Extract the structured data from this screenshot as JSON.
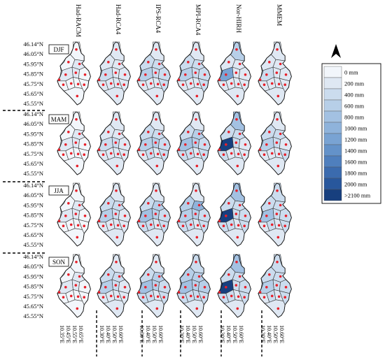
{
  "models": [
    "Had-RACM",
    "Had-RCA4",
    "IPS-RCA4",
    "MPI-RCA4",
    "Nor-HIRH",
    "MMEM"
  ],
  "seasons": [
    "DJF",
    "MAM",
    "JJA",
    "SON"
  ],
  "lat_labels": [
    "46.14°N",
    "46.05°N",
    "45.95°N",
    "45.85°N",
    "45.75°N",
    "45.65°N",
    "45.55°N"
  ],
  "lon_groups": [
    [
      "10.35°E",
      "10.45°E",
      "10.55°E",
      "10.65°E"
    ],
    [
      "10.30°E",
      "10.40°E",
      "10.50°E",
      "10.60°E"
    ],
    [
      "10.30°E",
      "10.40°E",
      "10.50°E",
      "10.60°E"
    ],
    [
      "10.30°E",
      "10.40°E",
      "10.50°E",
      "10.60°E"
    ],
    [
      "10.30°E",
      "10.40°E",
      "10.50°E",
      "10.60°E"
    ],
    [
      "10.30°E",
      "10.40°E",
      "10.50°E",
      "10.60°E"
    ]
  ],
  "legend": {
    "labels": [
      "0 mm",
      "200 mm",
      "400 mm",
      "600 mm",
      "800 mm",
      "1000 mm",
      "1200 mm",
      "1400 mm",
      "1600 mm",
      "1800 mm",
      "2000 mm",
      ">2100 mm"
    ],
    "colors": [
      "#f2f6fb",
      "#dfe8f3",
      "#cbdcee",
      "#b7cfe8",
      "#a3c1e2",
      "#8fb3db",
      "#79a3d3",
      "#6492c9",
      "#4f7fbd",
      "#3b6bae",
      "#28579c",
      "#173f7e"
    ]
  },
  "north_arrow_icon": "north-arrow-icon",
  "station_marker_color": "#e8202a",
  "cell_levels": [
    [
      [
        0,
        0,
        1,
        1,
        1,
        0,
        0,
        0,
        0,
        0,
        0
      ],
      [
        1,
        1,
        1,
        2,
        1,
        1,
        1,
        1,
        1,
        1,
        1
      ],
      [
        1,
        2,
        2,
        3,
        2,
        2,
        1,
        1,
        1,
        2,
        1
      ],
      [
        1,
        2,
        2,
        3,
        2,
        2,
        1,
        1,
        1,
        2,
        1
      ],
      [
        3,
        1,
        1,
        6,
        1,
        1,
        1,
        1,
        1,
        1,
        1
      ],
      [
        1,
        1,
        1,
        2,
        1,
        1,
        1,
        1,
        1,
        1,
        1
      ]
    ],
    [
      [
        0,
        0,
        1,
        1,
        1,
        0,
        0,
        0,
        0,
        0,
        0
      ],
      [
        1,
        1,
        1,
        2,
        2,
        1,
        1,
        1,
        1,
        1,
        1
      ],
      [
        1,
        2,
        2,
        3,
        3,
        2,
        1,
        2,
        1,
        2,
        1
      ],
      [
        1,
        2,
        3,
        4,
        3,
        2,
        2,
        2,
        1,
        2,
        1
      ],
      [
        4,
        2,
        2,
        11,
        2,
        1,
        2,
        1,
        1,
        1,
        1
      ],
      [
        1,
        2,
        2,
        3,
        2,
        1,
        1,
        1,
        1,
        2,
        1
      ]
    ],
    [
      [
        0,
        0,
        1,
        1,
        1,
        0,
        0,
        0,
        0,
        0,
        0
      ],
      [
        1,
        2,
        2,
        3,
        2,
        1,
        1,
        1,
        1,
        1,
        1
      ],
      [
        1,
        2,
        3,
        4,
        3,
        2,
        2,
        2,
        1,
        2,
        1
      ],
      [
        1,
        3,
        5,
        3,
        3,
        2,
        2,
        2,
        1,
        2,
        1
      ],
      [
        4,
        2,
        2,
        11,
        2,
        2,
        2,
        2,
        1,
        2,
        1
      ],
      [
        2,
        2,
        2,
        4,
        2,
        2,
        1,
        2,
        1,
        2,
        1
      ]
    ],
    [
      [
        0,
        0,
        1,
        1,
        1,
        0,
        0,
        0,
        0,
        0,
        0
      ],
      [
        1,
        2,
        2,
        3,
        2,
        1,
        1,
        1,
        1,
        1,
        1
      ],
      [
        1,
        2,
        3,
        4,
        3,
        2,
        2,
        2,
        1,
        2,
        1
      ],
      [
        2,
        3,
        3,
        4,
        3,
        3,
        2,
        2,
        2,
        2,
        1
      ],
      [
        4,
        2,
        2,
        11,
        2,
        2,
        2,
        2,
        1,
        2,
        1
      ],
      [
        2,
        2,
        2,
        3,
        2,
        2,
        1,
        2,
        1,
        2,
        1
      ]
    ]
  ]
}
